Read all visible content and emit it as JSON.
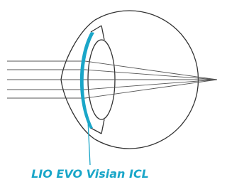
{
  "label": "LIO EVO Visian ICL"
}
